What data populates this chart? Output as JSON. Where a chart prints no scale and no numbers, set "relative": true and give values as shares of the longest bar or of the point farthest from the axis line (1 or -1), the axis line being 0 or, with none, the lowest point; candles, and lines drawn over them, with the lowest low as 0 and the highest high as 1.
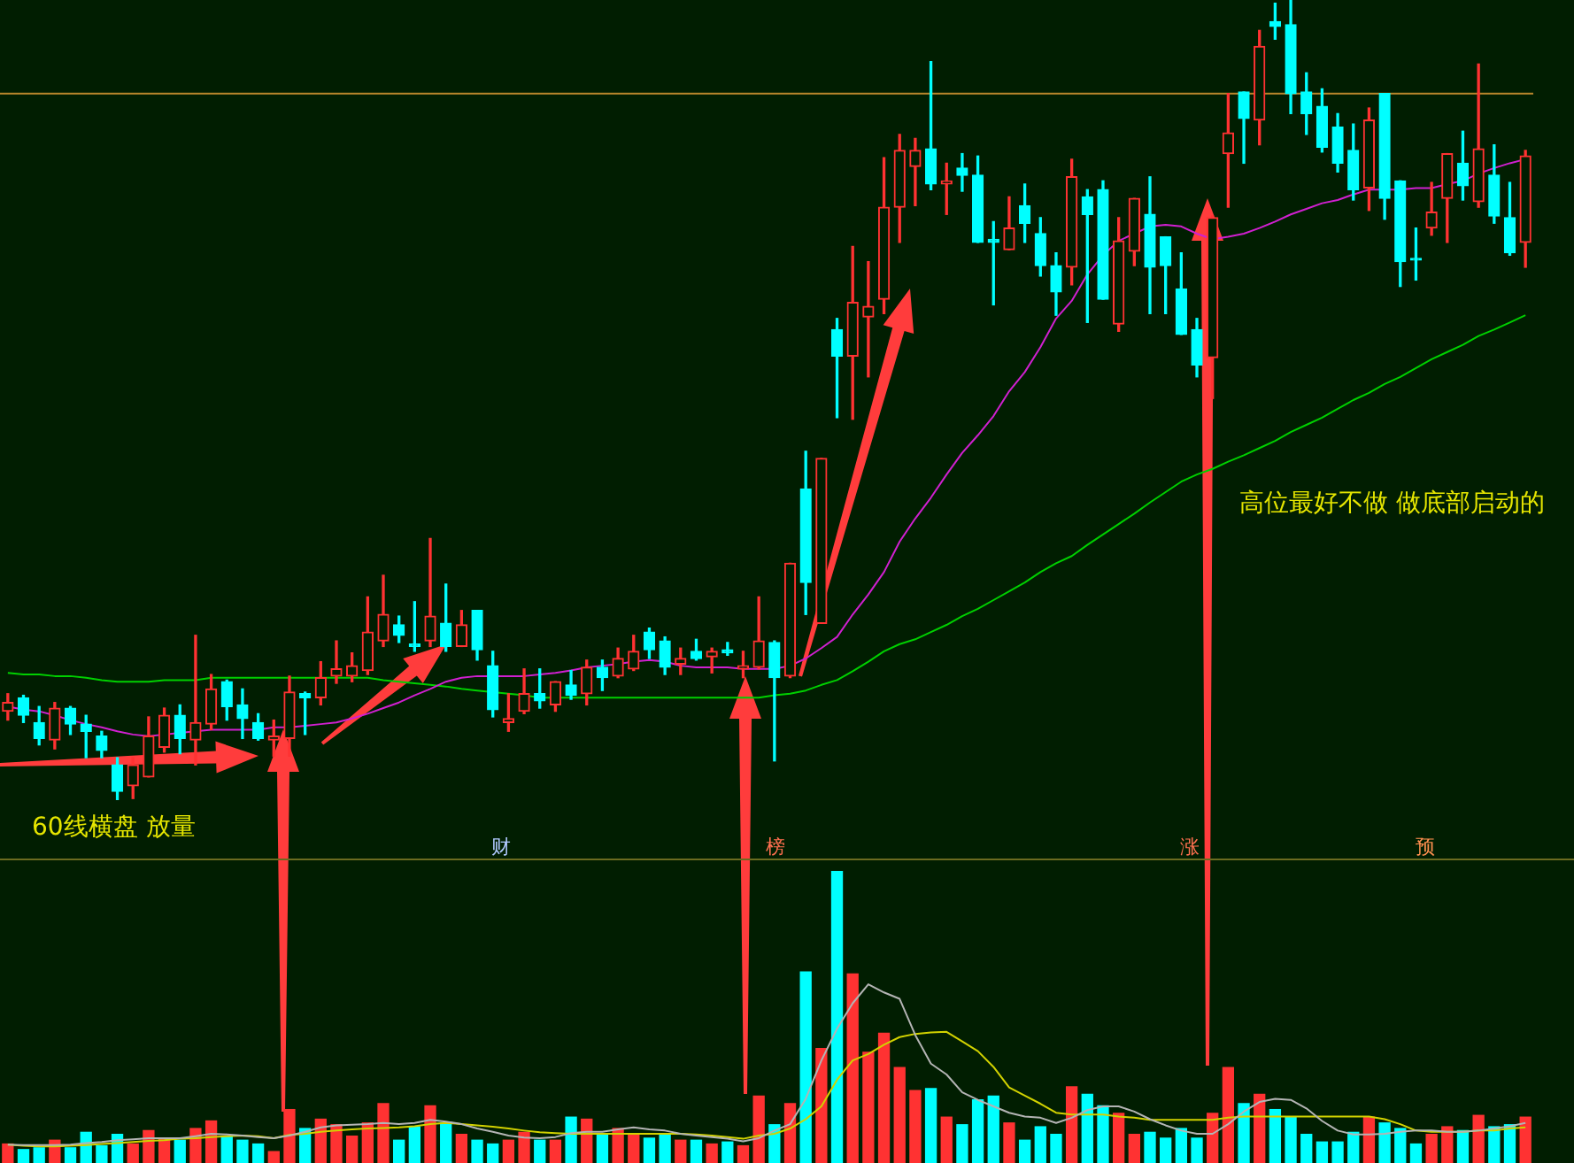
{
  "chart_data": [
    {
      "type": "candlestick",
      "relative": true,
      "categories": [
        null,
        null,
        null,
        null,
        null,
        null,
        null,
        null,
        null,
        null,
        null,
        null,
        null,
        null,
        null,
        null,
        null,
        null,
        null,
        null,
        null,
        null,
        null,
        null,
        null,
        null,
        null,
        null,
        null,
        null,
        null,
        null,
        null,
        null,
        null,
        null,
        null,
        null,
        null,
        null,
        null,
        null,
        null,
        null,
        null,
        null,
        null,
        null,
        null,
        null,
        null,
        null,
        null,
        null,
        null,
        null,
        null,
        null,
        null,
        null,
        null,
        null,
        null,
        null,
        null,
        null,
        null,
        null,
        null,
        null,
        null,
        null,
        null,
        null,
        null,
        null,
        null,
        null,
        null,
        null,
        null,
        null,
        null,
        null,
        null,
        null,
        null,
        null,
        null,
        null,
        null,
        null,
        null,
        null,
        null,
        null,
        null,
        null
      ],
      "ohlc": [
        [
          0.111,
          0.133,
          0.1,
          0.122
        ],
        [
          0.128,
          0.131,
          0.097,
          0.106
        ],
        [
          0.097,
          0.117,
          0.069,
          0.077
        ],
        [
          0.075,
          0.122,
          0.064,
          0.115
        ],
        [
          0.115,
          0.117,
          0.082,
          0.095
        ],
        [
          0.095,
          0.106,
          0.053,
          0.086
        ],
        [
          0.08,
          0.086,
          0.053,
          0.062
        ],
        [
          0.044,
          0.053,
          0.0,
          0.011
        ],
        [
          0.018,
          0.053,
          0.002,
          0.044
        ],
        [
          0.029,
          0.104,
          0.029,
          0.08
        ],
        [
          0.066,
          0.115,
          0.06,
          0.106
        ],
        [
          0.106,
          0.119,
          0.058,
          0.077
        ],
        [
          0.075,
          0.206,
          0.044,
          0.097
        ],
        [
          0.095,
          0.157,
          0.088,
          0.139
        ],
        [
          0.148,
          0.15,
          0.1,
          0.117
        ],
        [
          0.119,
          0.139,
          0.077,
          0.102
        ],
        [
          0.097,
          0.108,
          0.075,
          0.077
        ],
        [
          0.075,
          0.1,
          0.055,
          0.08
        ],
        [
          0.077,
          0.155,
          0.055,
          0.135
        ],
        [
          0.133,
          0.135,
          0.082,
          0.128
        ],
        [
          0.128,
          0.173,
          0.119,
          0.153
        ],
        [
          0.155,
          0.199,
          0.146,
          0.164
        ],
        [
          0.155,
          0.184,
          0.148,
          0.168
        ],
        [
          0.162,
          0.254,
          0.157,
          0.21
        ],
        [
          0.199,
          0.281,
          0.192,
          0.232
        ],
        [
          0.219,
          0.23,
          0.197,
          0.206
        ],
        [
          0.195,
          0.248,
          0.186,
          0.192
        ],
        [
          0.199,
          0.327,
          0.192,
          0.23
        ],
        [
          0.221,
          0.27,
          0.186,
          0.192
        ],
        [
          0.192,
          0.237,
          0.192,
          0.219
        ],
        [
          0.237,
          0.237,
          0.175,
          0.188
        ],
        [
          0.168,
          0.186,
          0.104,
          0.113
        ],
        [
          0.097,
          0.133,
          0.086,
          0.102
        ],
        [
          0.111,
          0.164,
          0.108,
          0.133
        ],
        [
          0.133,
          0.164,
          0.115,
          0.124
        ],
        [
          0.119,
          0.148,
          0.111,
          0.148
        ],
        [
          0.144,
          0.162,
          0.126,
          0.131
        ],
        [
          0.133,
          0.175,
          0.119,
          0.166
        ],
        [
          0.166,
          0.175,
          0.137,
          0.153
        ],
        [
          0.155,
          0.19,
          0.153,
          0.177
        ],
        [
          0.164,
          0.206,
          0.162,
          0.186
        ],
        [
          0.21,
          0.215,
          0.177,
          0.188
        ],
        [
          0.199,
          0.204,
          0.157,
          0.166
        ],
        [
          0.17,
          0.19,
          0.157,
          0.177
        ],
        [
          0.186,
          0.201,
          0.175,
          0.177
        ],
        [
          0.179,
          0.19,
          0.159,
          0.186
        ],
        [
          0.188,
          0.197,
          0.181,
          0.184
        ],
        [
          0.164,
          0.186,
          0.153,
          0.168
        ],
        [
          0.166,
          0.254,
          0.164,
          0.199
        ],
        [
          0.197,
          0.199,
          0.049,
          0.153
        ],
        [
          0.155,
          0.296,
          0.153,
          0.296
        ],
        [
          0.389,
          0.436,
          0.232,
          0.272
        ],
        [
          0.221,
          0.427,
          0.221,
          0.427
        ],
        [
          0.588,
          0.602,
          0.478,
          0.555
        ],
        [
          0.555,
          0.692,
          0.476,
          0.622
        ],
        [
          0.604,
          0.673,
          0.529,
          0.617
        ],
        [
          0.626,
          0.803,
          0.608,
          0.741
        ],
        [
          0.741,
          0.832,
          0.697,
          0.812
        ],
        [
          0.792,
          0.827,
          0.743,
          0.812
        ],
        [
          0.814,
          0.923,
          0.763,
          0.77
        ],
        [
          0.77,
          0.796,
          0.732,
          0.774
        ],
        [
          0.79,
          0.808,
          0.761,
          0.781
        ],
        [
          0.781,
          0.805,
          0.697,
          0.697
        ],
        [
          0.701,
          0.723,
          0.619,
          0.697
        ],
        [
          0.688,
          0.754,
          0.688,
          0.715
        ],
        [
          0.743,
          0.77,
          0.697,
          0.721
        ],
        [
          0.708,
          0.728,
          0.655,
          0.668
        ],
        [
          0.668,
          0.684,
          0.606,
          0.635
        ],
        [
          0.666,
          0.801,
          0.644,
          0.779
        ],
        [
          0.754,
          0.763,
          0.597,
          0.732
        ],
        [
          0.763,
          0.774,
          0.626,
          0.626
        ],
        [
          0.595,
          0.728,
          0.586,
          0.699
        ],
        [
          0.686,
          0.752,
          0.668,
          0.752
        ],
        [
          0.732,
          0.779,
          0.608,
          0.666
        ],
        [
          0.704,
          0.704,
          0.608,
          0.668
        ],
        [
          0.639,
          0.684,
          0.582,
          0.582
        ],
        [
          0.588,
          0.602,
          0.529,
          0.544
        ],
        [
          0.553,
          0.73,
          0.502,
          0.728
        ],
        [
          0.808,
          0.883,
          0.741,
          0.834
        ],
        [
          0.885,
          0.885,
          0.796,
          0.852
        ],
        [
          0.85,
          0.962,
          0.819,
          0.942
        ],
        [
          0.973,
          0.996,
          0.951,
          0.967
        ],
        [
          0.969,
          1.0,
          0.858,
          0.883
        ],
        [
          0.885,
          0.909,
          0.832,
          0.858
        ],
        [
          0.867,
          0.889,
          0.81,
          0.816
        ],
        [
          0.841,
          0.858,
          0.785,
          0.796
        ],
        [
          0.812,
          0.845,
          0.75,
          0.763
        ],
        [
          0.765,
          0.865,
          0.737,
          0.85
        ],
        [
          0.883,
          0.883,
          0.726,
          0.752
        ],
        [
          0.774,
          0.774,
          0.642,
          0.673
        ],
        [
          0.677,
          0.715,
          0.65,
          0.675
        ],
        [
          0.715,
          0.772,
          0.706,
          0.735
        ],
        [
          0.752,
          0.808,
          0.697,
          0.808
        ],
        [
          0.796,
          0.836,
          0.75,
          0.768
        ],
        [
          0.748,
          0.92,
          0.741,
          0.814
        ],
        [
          0.781,
          0.819,
          0.721,
          0.73
        ],
        [
          0.728,
          0.772,
          0.681,
          0.684
        ],
        [
          0.697,
          0.812,
          0.666,
          0.805
        ]
      ],
      "colors": [
        "#ff3232",
        "#00ffff",
        "#00ffff",
        "#ff3232",
        "#00ffff",
        "#00ffff",
        "#00ffff",
        "#00ffff",
        "#ff3232",
        "#ff3232",
        "#ff3232",
        "#00ffff",
        "#ff3232",
        "#ff3232",
        "#00ffff",
        "#00ffff",
        "#00ffff",
        "#ff3232",
        "#ff3232",
        "#00ffff",
        "#ff3232",
        "#ff3232",
        "#ff3232",
        "#ff3232",
        "#ff3232",
        "#00ffff",
        "#00ffff",
        "#ff3232",
        "#00ffff",
        "#ff3232",
        "#00ffff",
        "#00ffff",
        "#ff3232",
        "#ff3232",
        "#00ffff",
        "#ff3232",
        "#00ffff",
        "#ff3232",
        "#00ffff",
        "#ff3232",
        "#ff3232",
        "#00ffff",
        "#00ffff",
        "#ff3232",
        "#00ffff",
        "#ff3232",
        "#00ffff",
        "#ff3232",
        "#ff3232",
        "#00ffff",
        "#ff3232",
        "#00ffff",
        "#ff3232",
        "#00ffff",
        "#ff3232",
        "#ff3232",
        "#ff3232",
        "#ff3232",
        "#ff3232",
        "#00ffff",
        "#ff3232",
        "#00ffff",
        "#00ffff",
        "#00ffff",
        "#ff3232",
        "#00ffff",
        "#00ffff",
        "#00ffff",
        "#ff3232",
        "#00ffff",
        "#00ffff",
        "#ff3232",
        "#ff3232",
        "#00ffff",
        "#00ffff",
        "#00ffff",
        "#00ffff",
        "#ff3232",
        "#ff3232",
        "#00ffff",
        "#ff3232",
        "#00ffff",
        "#00ffff",
        "#00ffff",
        "#00ffff",
        "#00ffff",
        "#00ffff",
        "#ff3232",
        "#00ffff",
        "#00ffff",
        "#00ffff",
        "#ff3232",
        "#ff3232",
        "#00ffff",
        "#ff3232",
        "#00ffff",
        "#00ffff",
        "#ff3232"
      ],
      "series": [
        {
          "type": "line",
          "color": "#d020d0",
          "values": [
            0.117,
            0.113,
            0.111,
            0.106,
            0.1,
            0.095,
            0.091,
            0.086,
            0.082,
            0.08,
            0.082,
            0.084,
            0.086,
            0.088,
            0.088,
            0.088,
            0.088,
            0.091,
            0.091,
            0.093,
            0.095,
            0.097,
            0.102,
            0.108,
            0.115,
            0.122,
            0.131,
            0.139,
            0.148,
            0.153,
            0.155,
            0.155,
            0.155,
            0.155,
            0.157,
            0.159,
            0.162,
            0.166,
            0.168,
            0.17,
            0.173,
            0.175,
            0.173,
            0.168,
            0.166,
            0.166,
            0.166,
            0.164,
            0.164,
            0.164,
            0.168,
            0.177,
            0.19,
            0.204,
            0.232,
            0.257,
            0.285,
            0.323,
            0.352,
            0.378,
            0.407,
            0.434,
            0.456,
            0.48,
            0.511,
            0.535,
            0.566,
            0.602,
            0.624,
            0.657,
            0.681,
            0.699,
            0.708,
            0.717,
            0.719,
            0.717,
            0.708,
            0.701,
            0.704,
            0.708,
            0.715,
            0.723,
            0.732,
            0.739,
            0.746,
            0.75,
            0.757,
            0.763,
            0.763,
            0.763,
            0.765,
            0.765,
            0.77,
            0.774,
            0.783,
            0.79,
            0.796,
            0.801
          ]
        },
        {
          "type": "line",
          "color": "#00d000",
          "values": [
            0.159,
            0.157,
            0.157,
            0.155,
            0.155,
            0.153,
            0.15,
            0.148,
            0.148,
            0.148,
            0.15,
            0.15,
            0.15,
            0.153,
            0.153,
            0.153,
            0.153,
            0.153,
            0.153,
            0.153,
            0.153,
            0.153,
            0.153,
            0.153,
            0.15,
            0.148,
            0.146,
            0.144,
            0.142,
            0.139,
            0.137,
            0.135,
            0.133,
            0.131,
            0.128,
            0.128,
            0.128,
            0.128,
            0.128,
            0.128,
            0.128,
            0.128,
            0.128,
            0.128,
            0.128,
            0.128,
            0.128,
            0.128,
            0.128,
            0.131,
            0.133,
            0.137,
            0.144,
            0.15,
            0.161,
            0.173,
            0.186,
            0.195,
            0.201,
            0.21,
            0.219,
            0.23,
            0.239,
            0.25,
            0.261,
            0.272,
            0.285,
            0.296,
            0.305,
            0.319,
            0.332,
            0.345,
            0.358,
            0.372,
            0.385,
            0.398,
            0.407,
            0.414,
            0.423,
            0.431,
            0.44,
            0.449,
            0.46,
            0.469,
            0.478,
            0.489,
            0.5,
            0.509,
            0.52,
            0.529,
            0.54,
            0.551,
            0.56,
            0.569,
            0.58,
            0.588,
            0.597,
            0.606
          ]
        }
      ],
      "ref_lines": [
        {
          "axis": "y",
          "value": 0.883,
          "color": "#b8862c"
        }
      ],
      "annotations": [
        "60线横盘 放量",
        "高位最好不做 做底部启动的",
        "财",
        "榜",
        "涨",
        "预"
      ]
    },
    {
      "type": "bar",
      "relative": true,
      "categories": [
        null,
        null,
        null,
        null,
        null,
        null,
        null,
        null,
        null,
        null,
        null,
        null,
        null,
        null,
        null,
        null,
        null,
        null,
        null,
        null,
        null,
        null,
        null,
        null,
        null,
        null,
        null,
        null,
        null,
        null,
        null,
        null,
        null,
        null,
        null,
        null,
        null,
        null,
        null,
        null,
        null,
        null,
        null,
        null,
        null,
        null,
        null,
        null,
        null,
        null,
        null,
        null,
        null,
        null,
        null,
        null,
        null,
        null,
        null,
        null,
        null,
        null,
        null,
        null,
        null,
        null,
        null,
        null,
        null,
        null,
        null,
        null,
        null,
        null,
        null,
        null,
        null,
        null,
        null,
        null,
        null,
        null,
        null,
        null,
        null,
        null,
        null,
        null,
        null,
        null,
        null,
        null,
        null,
        null,
        null,
        null,
        null,
        null
      ],
      "values": [
        0.065,
        0.046,
        0.052,
        0.078,
        0.052,
        0.105,
        0.059,
        0.098,
        0.065,
        0.111,
        0.085,
        0.078,
        0.118,
        0.144,
        0.092,
        0.078,
        0.065,
        0.039,
        0.183,
        0.118,
        0.15,
        0.131,
        0.092,
        0.137,
        0.203,
        0.078,
        0.124,
        0.196,
        0.137,
        0.098,
        0.078,
        0.065,
        0.078,
        0.105,
        0.078,
        0.078,
        0.157,
        0.15,
        0.098,
        0.118,
        0.098,
        0.085,
        0.098,
        0.078,
        0.078,
        0.065,
        0.072,
        0.059,
        0.229,
        0.131,
        0.203,
        0.654,
        0.392,
        1.0,
        0.647,
        0.379,
        0.444,
        0.327,
        0.248,
        0.255,
        0.157,
        0.131,
        0.216,
        0.229,
        0.137,
        0.078,
        0.124,
        0.098,
        0.261,
        0.235,
        0.196,
        0.17,
        0.098,
        0.105,
        0.085,
        0.118,
        0.085,
        0.17,
        0.327,
        0.203,
        0.235,
        0.183,
        0.157,
        0.098,
        0.072,
        0.072,
        0.105,
        0.157,
        0.137,
        0.118,
        0.065,
        0.098,
        0.124,
        0.111,
        0.163,
        0.124,
        0.131,
        0.157
      ],
      "colors": [
        "#ff3232",
        "#00ffff",
        "#00ffff",
        "#ff3232",
        "#00ffff",
        "#00ffff",
        "#00ffff",
        "#00ffff",
        "#ff3232",
        "#ff3232",
        "#ff3232",
        "#00ffff",
        "#ff3232",
        "#ff3232",
        "#00ffff",
        "#00ffff",
        "#00ffff",
        "#ff3232",
        "#ff3232",
        "#00ffff",
        "#ff3232",
        "#ff3232",
        "#ff3232",
        "#ff3232",
        "#ff3232",
        "#00ffff",
        "#00ffff",
        "#ff3232",
        "#00ffff",
        "#ff3232",
        "#00ffff",
        "#00ffff",
        "#ff3232",
        "#ff3232",
        "#00ffff",
        "#ff3232",
        "#00ffff",
        "#ff3232",
        "#00ffff",
        "#ff3232",
        "#ff3232",
        "#00ffff",
        "#00ffff",
        "#ff3232",
        "#00ffff",
        "#ff3232",
        "#00ffff",
        "#ff3232",
        "#ff3232",
        "#00ffff",
        "#ff3232",
        "#00ffff",
        "#ff3232",
        "#00ffff",
        "#ff3232",
        "#ff3232",
        "#ff3232",
        "#ff3232",
        "#ff3232",
        "#00ffff",
        "#ff3232",
        "#00ffff",
        "#00ffff",
        "#00ffff",
        "#ff3232",
        "#00ffff",
        "#00ffff",
        "#00ffff",
        "#ff3232",
        "#00ffff",
        "#00ffff",
        "#ff3232",
        "#ff3232",
        "#00ffff",
        "#00ffff",
        "#00ffff",
        "#00ffff",
        "#ff3232",
        "#ff3232",
        "#00ffff",
        "#ff3232",
        "#00ffff",
        "#00ffff",
        "#00ffff",
        "#00ffff",
        "#00ffff",
        "#00ffff",
        "#ff3232",
        "#00ffff",
        "#00ffff",
        "#00ffff",
        "#ff3232",
        "#ff3232",
        "#00ffff",
        "#ff3232",
        "#00ffff",
        "#00ffff",
        "#ff3232"
      ],
      "series": [
        {
          "type": "line",
          "color": "#b4b4b4",
          "values": [
            0.063,
            0.061,
            0.061,
            0.061,
            0.063,
            0.068,
            0.072,
            0.078,
            0.081,
            0.085,
            0.085,
            0.085,
            0.092,
            0.1,
            0.098,
            0.094,
            0.089,
            0.085,
            0.094,
            0.107,
            0.122,
            0.129,
            0.131,
            0.133,
            0.137,
            0.133,
            0.137,
            0.148,
            0.142,
            0.133,
            0.118,
            0.107,
            0.094,
            0.087,
            0.085,
            0.089,
            0.102,
            0.107,
            0.107,
            0.115,
            0.122,
            0.115,
            0.111,
            0.1,
            0.094,
            0.089,
            0.083,
            0.074,
            0.085,
            0.111,
            0.133,
            0.22,
            0.351,
            0.46,
            0.547,
            0.612,
            0.584,
            0.562,
            0.438,
            0.34,
            0.303,
            0.242,
            0.216,
            0.194,
            0.172,
            0.159,
            0.155,
            0.137,
            0.155,
            0.181,
            0.194,
            0.194,
            0.176,
            0.15,
            0.129,
            0.111,
            0.1,
            0.1,
            0.133,
            0.176,
            0.209,
            0.22,
            0.216,
            0.187,
            0.144,
            0.111,
            0.098,
            0.098,
            0.1,
            0.107,
            0.111,
            0.111,
            0.107,
            0.107,
            0.111,
            0.118,
            0.126,
            0.137
          ]
        },
        {
          "type": "line",
          "color": "#d2d200",
          "values": [
            0.063,
            0.059,
            0.057,
            0.057,
            0.059,
            0.061,
            0.065,
            0.068,
            0.072,
            0.076,
            0.078,
            0.083,
            0.085,
            0.089,
            0.092,
            0.094,
            0.092,
            0.085,
            0.096,
            0.1,
            0.107,
            0.111,
            0.115,
            0.118,
            0.12,
            0.122,
            0.126,
            0.133,
            0.137,
            0.133,
            0.129,
            0.124,
            0.118,
            0.111,
            0.105,
            0.102,
            0.1,
            0.1,
            0.1,
            0.1,
            0.1,
            0.1,
            0.1,
            0.1,
            0.098,
            0.094,
            0.089,
            0.083,
            0.094,
            0.1,
            0.118,
            0.15,
            0.194,
            0.285,
            0.351,
            0.373,
            0.405,
            0.431,
            0.442,
            0.447,
            0.449,
            0.416,
            0.383,
            0.329,
            0.259,
            0.231,
            0.203,
            0.172,
            0.166,
            0.166,
            0.166,
            0.159,
            0.155,
            0.148,
            0.148,
            0.148,
            0.148,
            0.148,
            0.155,
            0.159,
            0.159,
            0.159,
            0.159,
            0.159,
            0.159,
            0.159,
            0.159,
            0.159,
            0.15,
            0.133,
            0.111,
            0.107,
            0.107,
            0.107,
            0.111,
            0.111,
            0.118,
            0.122
          ]
        }
      ]
    }
  ]
}
